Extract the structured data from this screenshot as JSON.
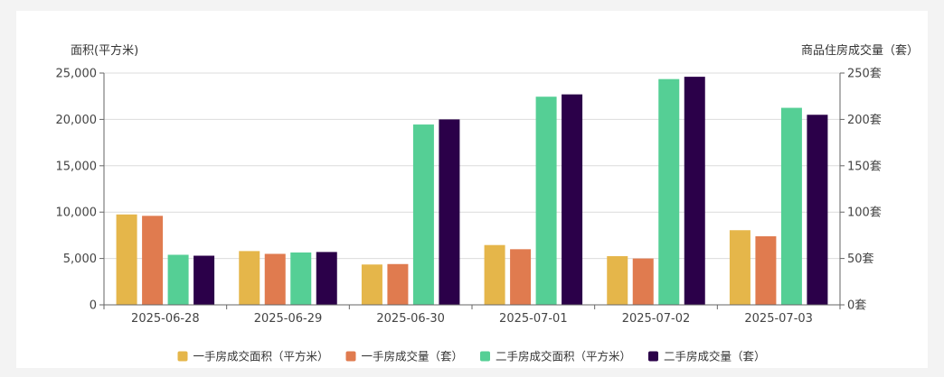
{
  "chart_data": {
    "type": "bar",
    "categories": [
      "2025-06-28",
      "2025-06-29",
      "2025-06-30",
      "2025-07-01",
      "2025-07-02",
      "2025-07-03"
    ],
    "left_axis": {
      "title": "面积(平方米)",
      "ylim": [
        0,
        25000
      ],
      "ticks": [
        0,
        5000,
        10000,
        15000,
        20000,
        25000
      ],
      "tick_labels": [
        "0",
        "5,000",
        "10,000",
        "15,000",
        "20,000",
        "25,000"
      ]
    },
    "right_axis": {
      "title": "商品住房成交量（套）",
      "ylim": [
        0,
        250
      ],
      "ticks": [
        0,
        50,
        100,
        150,
        200,
        250
      ],
      "tick_labels": [
        "0套",
        "50套",
        "100套",
        "150套",
        "200套",
        "250套"
      ]
    },
    "series": [
      {
        "name": "一手房成交面积（平方米）",
        "axis": "left",
        "color": "#e5b64a",
        "values": [
          9750,
          5800,
          4350,
          6450,
          5250,
          8050
        ]
      },
      {
        "name": "一手房成交量（套）",
        "axis": "right",
        "color": "#e07b4f",
        "values": [
          96,
          55,
          44,
          60,
          50,
          74
        ]
      },
      {
        "name": "二手房成交面积（平方米）",
        "axis": "left",
        "color": "#55cf95",
        "values": [
          5400,
          5650,
          19450,
          22450,
          24350,
          21250
        ]
      },
      {
        "name": "二手房成交量（套）",
        "axis": "right",
        "color": "#2b0049",
        "values": [
          53,
          57,
          200,
          227,
          246,
          205
        ]
      }
    ],
    "grid": true,
    "legend_position": "bottom"
  }
}
